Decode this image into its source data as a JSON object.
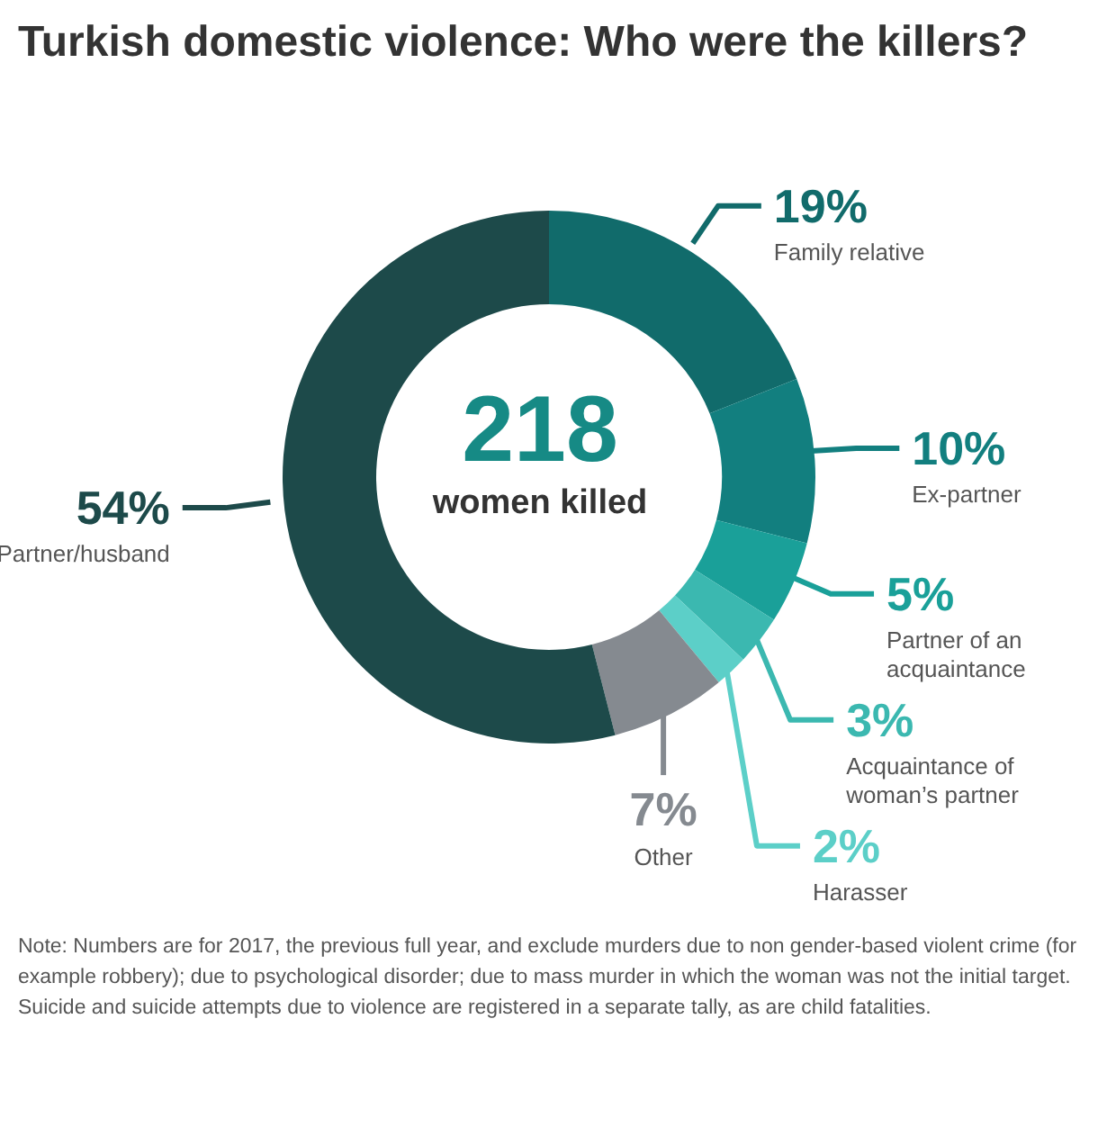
{
  "chart_data": {
    "type": "donut",
    "title": "Turkish domestic violence: Who were the killers?",
    "categories": [
      "Family relative",
      "Ex-partner",
      "Partner of an acquaintance",
      "Acquaintance of woman’s partner",
      "Harasser",
      "Other",
      "Partner/husband"
    ],
    "values": [
      19,
      10,
      5,
      3,
      2,
      7,
      54
    ],
    "colors": [
      "#116b6b",
      "#127f7f",
      "#1aa099",
      "#3bb8b0",
      "#5ccfc8",
      "#858a90",
      "#1d4a4a"
    ],
    "value_labels": [
      "19%",
      "10%",
      "5%",
      "3%",
      "2%",
      "7%",
      "54%"
    ],
    "annotations": [
      "218",
      "women killed",
      "Note: Numbers are for 2017, the previous full year, and exclude murders due to non gender-based violent crime (for example robbery); due to psychological disorder; due to mass murder in which the woman was not the initial target. Suicide and suicide attempts due to violence are registered in a separate tally, as are child fatalities."
    ]
  }
}
